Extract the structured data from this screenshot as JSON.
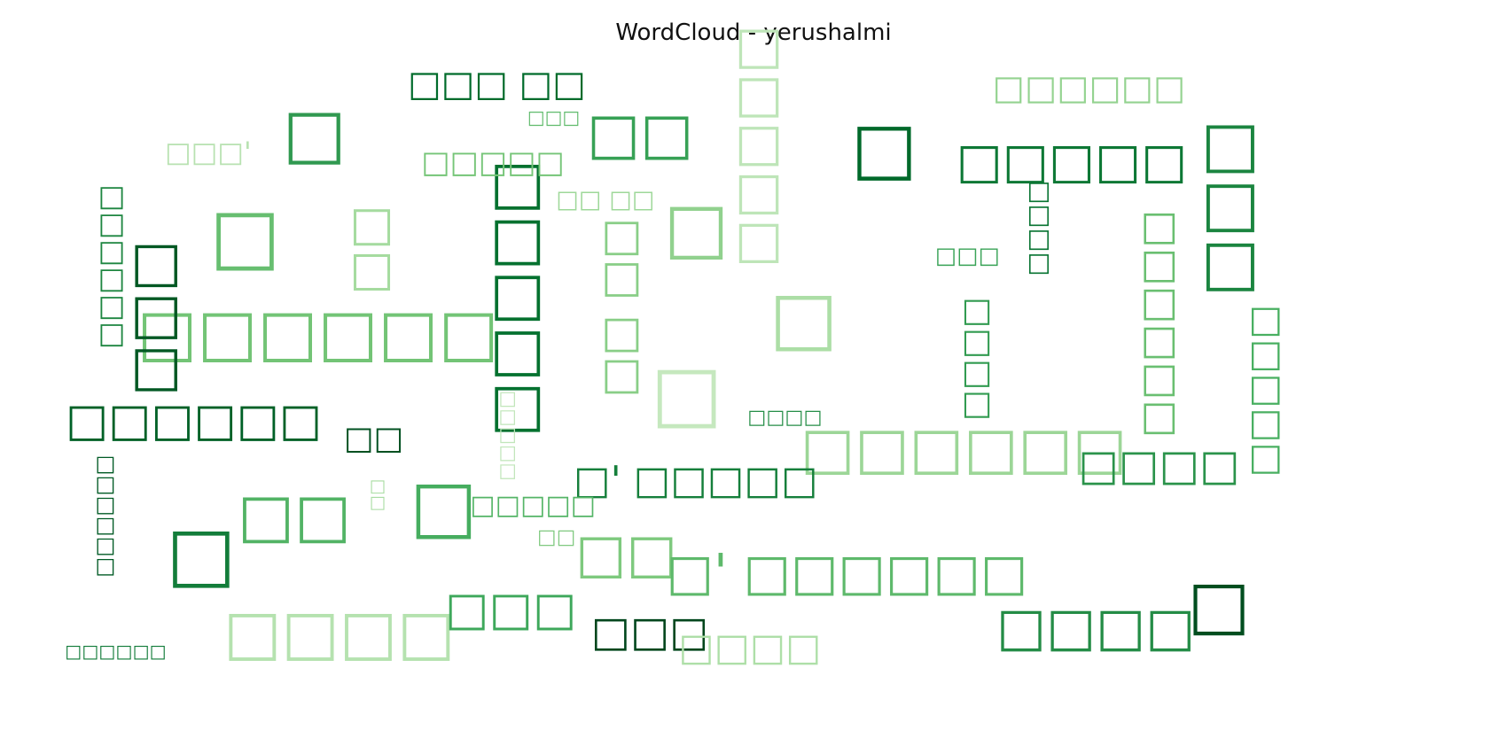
{
  "chart_data": {
    "type": "wordcloud",
    "title": "WordCloud - yerushalmi",
    "colormap": "Greens",
    "background": "#ffffff",
    "words": [
      {
        "text": "□",
        "weight": 1.0
      },
      {
        "text": "□",
        "weight": 0.98
      },
      {
        "text": "□",
        "weight": 0.96
      },
      {
        "text": "□",
        "weight": 0.94
      },
      {
        "text": "□",
        "weight": 0.92
      },
      {
        "text": "□",
        "weight": 0.9
      },
      {
        "text": "□",
        "weight": 0.88
      },
      {
        "text": "□",
        "weight": 0.86
      },
      {
        "text": "□",
        "weight": 0.84
      },
      {
        "text": "□□□□□□",
        "weight": 0.8
      },
      {
        "text": "□□□",
        "weight": 0.78
      },
      {
        "text": "□□□□",
        "weight": 0.76
      },
      {
        "text": "□□",
        "weight": 0.74
      },
      {
        "text": "□□□□□",
        "weight": 0.72
      },
      {
        "text": "□□□□□□",
        "weight": 0.7
      },
      {
        "text": "□□",
        "weight": 0.68
      },
      {
        "text": "□□□",
        "weight": 0.66
      },
      {
        "text": "□□",
        "weight": 0.64
      },
      {
        "text": "□□□□",
        "weight": 0.62
      },
      {
        "text": "□□□□□",
        "weight": 0.6
      },
      {
        "text": "□'  □□□□□□",
        "weight": 0.58
      },
      {
        "text": "□□□□□",
        "weight": 0.56
      },
      {
        "text": "□□",
        "weight": 0.54
      },
      {
        "text": "□□□",
        "weight": 0.52
      },
      {
        "text": "□□□□□□",
        "weight": 0.5
      },
      {
        "text": "□□  □□",
        "weight": 0.48
      },
      {
        "text": "□□□□",
        "weight": 0.46
      },
      {
        "text": "□□□",
        "weight": 0.44
      },
      {
        "text": "□□□□□□",
        "weight": 0.42
      },
      {
        "text": "□'  □□□□□",
        "weight": 0.4
      },
      {
        "text": "□□□□",
        "weight": 0.38
      },
      {
        "text": "□□□□□",
        "weight": 0.36
      },
      {
        "text": "□□□  □□",
        "weight": 0.34
      },
      {
        "text": "□□□□□□",
        "weight": 0.32
      },
      {
        "text": "□□□□",
        "weight": 0.3
      },
      {
        "text": "□□",
        "weight": 0.28
      },
      {
        "text": "□□□□□",
        "weight": 0.26
      },
      {
        "text": "□□□□□□",
        "weight": 0.24
      },
      {
        "text": "□□□'",
        "weight": 0.22
      },
      {
        "text": "□□□□□",
        "weight": 0.2
      },
      {
        "text": "□□□□",
        "weight": 0.18
      },
      {
        "text": "□□  □□",
        "weight": 0.16
      },
      {
        "text": "□□□",
        "weight": 0.14
      },
      {
        "text": "□□□□□□",
        "weight": 0.12
      },
      {
        "text": "□□",
        "weight": 0.1
      },
      {
        "text": "□□□□",
        "weight": 0.09
      },
      {
        "text": "□□□□□",
        "weight": 0.08
      },
      {
        "text": "□□□",
        "weight": 0.07
      },
      {
        "text": "□□□□□□",
        "weight": 0.06
      },
      {
        "text": "□□",
        "weight": 0.05
      }
    ]
  }
}
